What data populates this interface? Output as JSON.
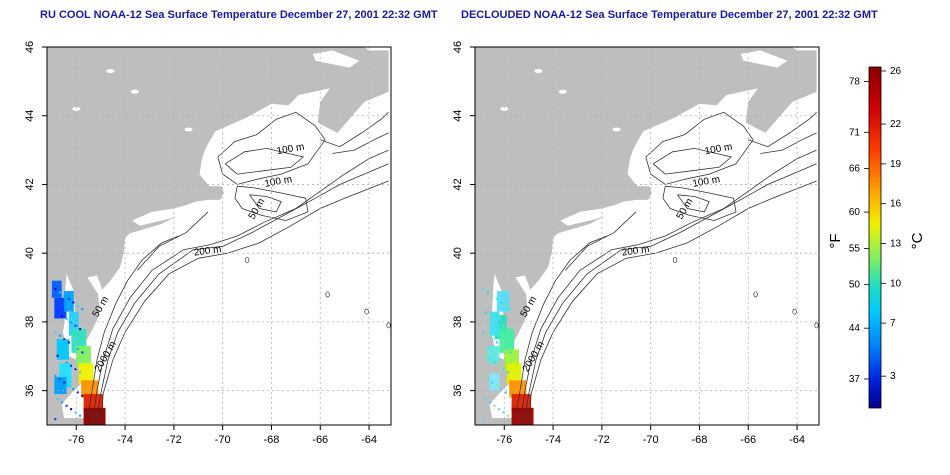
{
  "maps": [
    {
      "id": "left",
      "title": "RU COOL NOAA-12 Sea Surface Temperature December 27, 2001 22:32 GMT"
    },
    {
      "id": "right",
      "title": "DECLOUDED NOAA-12 Sea Surface Temperature December 27, 2001 22:32 GMT"
    }
  ],
  "axes": {
    "lon_ticks": [
      "-76",
      "-74",
      "-72",
      "-70",
      "-68",
      "-66",
      "-64"
    ],
    "lat_ticks": [
      "46",
      "44",
      "42",
      "40",
      "38",
      "36"
    ],
    "lon_range": [
      -77.2,
      -63.1
    ],
    "lat_range": [
      35.0,
      46.0
    ]
  },
  "contour_labels": [
    {
      "text": "100 m",
      "lon": -67.2,
      "lat": 42.95,
      "rot": -10
    },
    {
      "text": "100 m",
      "lon": -67.7,
      "lat": 42.0,
      "rot": -10
    },
    {
      "text": "50 m",
      "lon": -68.5,
      "lat": 41.25,
      "rot": -60
    },
    {
      "text": "200 m",
      "lon": -70.6,
      "lat": 39.98,
      "rot": -8
    },
    {
      "text": "50 m",
      "lon": -74.9,
      "lat": 38.4,
      "rot": -60
    },
    {
      "text": "2000 m",
      "lon": -74.7,
      "lat": 36.95,
      "rot": -60
    }
  ],
  "colorbar": {
    "fahrenheit_label": "°F",
    "celsius_label": "°C",
    "fahrenheit_ticks": [
      "78",
      "71",
      "66",
      "60",
      "55",
      "50",
      "44",
      "37"
    ],
    "celsius_ticks": [
      "26",
      "22",
      "19",
      "16",
      "13",
      "10",
      "7",
      "3"
    ],
    "colors": [
      "#8b0000",
      "#c40000",
      "#ff2000",
      "#ff7a00",
      "#ffc400",
      "#f0f000",
      "#9cf03c",
      "#3cf0a0",
      "#00e0ff",
      "#00a0ff",
      "#0050ff",
      "#0000c8",
      "#00008b"
    ]
  }
}
